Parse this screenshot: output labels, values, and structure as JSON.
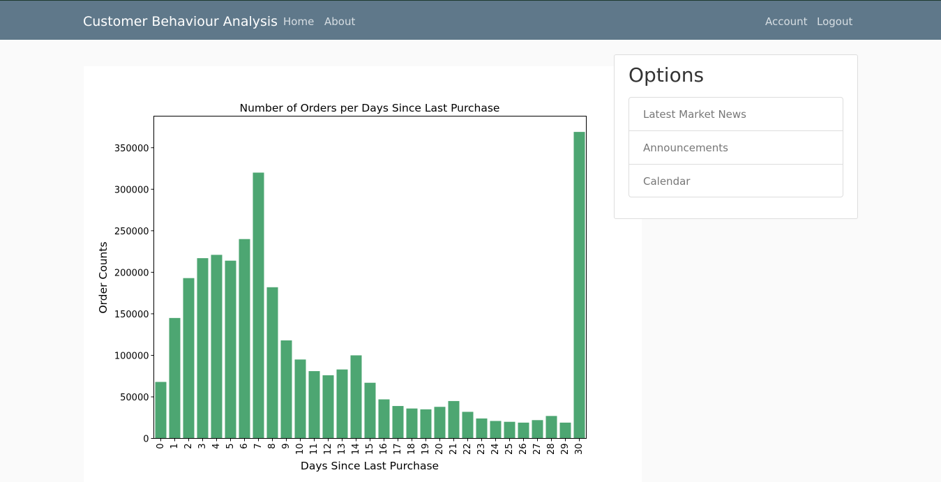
{
  "navbar": {
    "brand": "Customer Behaviour Analysis",
    "left_links": [
      "Home",
      "About"
    ],
    "right_links": [
      "Account",
      "Logout"
    ],
    "background": "#5f788a"
  },
  "sidebar": {
    "title": "Options",
    "items": [
      "Latest Market News",
      "Announcements",
      "Calendar"
    ]
  },
  "chart_data": {
    "type": "bar",
    "title": "Number of Orders per Days Since Last Purchase",
    "xlabel": "Days Since Last Purchase",
    "ylabel": "Order Counts",
    "categories": [
      "0",
      "1",
      "2",
      "3",
      "4",
      "5",
      "6",
      "7",
      "8",
      "9",
      "10",
      "11",
      "12",
      "13",
      "14",
      "15",
      "16",
      "17",
      "18",
      "19",
      "20",
      "21",
      "22",
      "23",
      "24",
      "25",
      "26",
      "27",
      "28",
      "29",
      "30"
    ],
    "values": [
      68000,
      145000,
      193000,
      217000,
      221000,
      214000,
      240000,
      320000,
      182000,
      118000,
      95000,
      81000,
      76000,
      83000,
      100000,
      67000,
      47000,
      39000,
      36000,
      35000,
      38000,
      45000,
      32000,
      24000,
      21000,
      20000,
      19000,
      22000,
      27000,
      19000,
      369000
    ],
    "ylim": [
      0,
      388000
    ],
    "yticks": [
      0,
      50000,
      100000,
      150000,
      200000,
      250000,
      300000,
      350000
    ],
    "bar_color": "#4da672",
    "grid": false
  }
}
